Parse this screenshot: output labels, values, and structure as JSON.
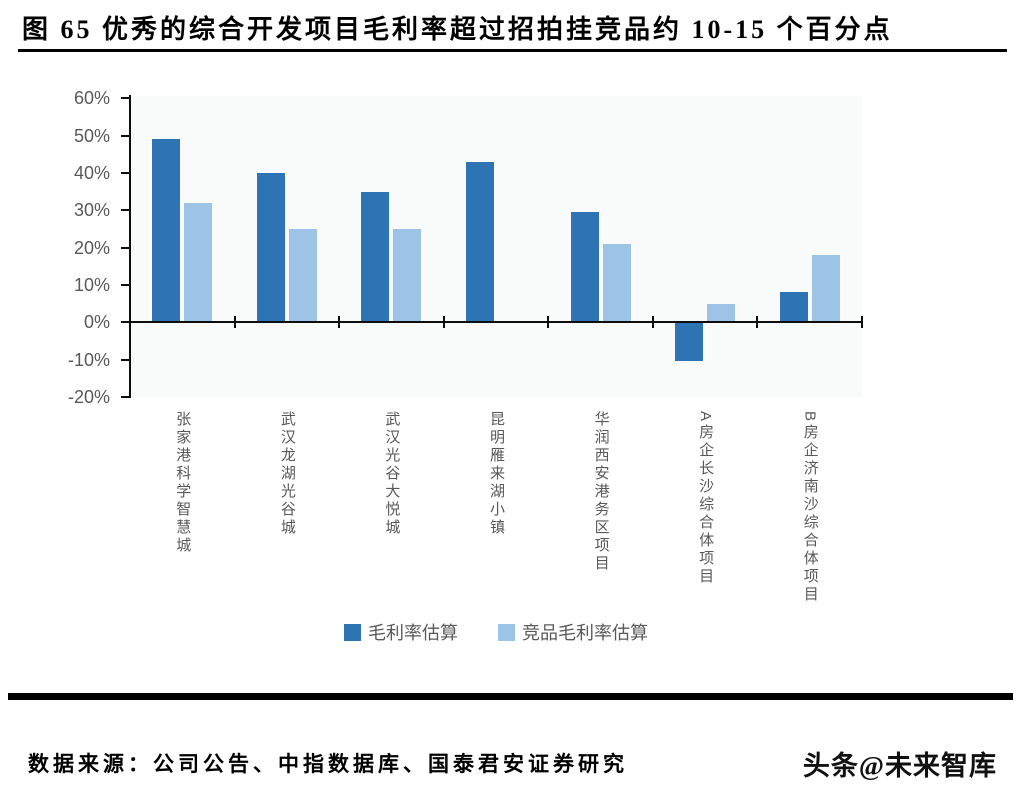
{
  "title": "图 65 优秀的综合开发项目毛利率超过招拍挂竞品约 10-15 个百分点",
  "footer": {
    "source": "数据来源：公司公告、中指数据库、国泰君安证券研究",
    "watermark": "头条@未来智库"
  },
  "colors": {
    "series_dark": "#2E74B5",
    "series_light": "#9DC3E6",
    "axis": "#0d0d0d",
    "label_gray": "#595959",
    "plot_background": "#f9fafa"
  },
  "chart_data": {
    "type": "bar",
    "title": "优秀的综合开发项目毛利率超过招拍挂竞品约10-15个百分点",
    "categories": [
      "张家港科学智慧城",
      "武汉龙湖光谷城",
      "武汉光谷大悦城",
      "昆明雁来湖小镇",
      "华润西安港务区项目",
      "A房企长沙综合体项目",
      "B房企济南沙综合体项目"
    ],
    "series": [
      {
        "name": "毛利率估算",
        "color": "#2E74B5",
        "values": [
          49,
          40,
          35,
          43,
          29.5,
          -10.5,
          8
        ]
      },
      {
        "name": "竞品毛利率估算",
        "color": "#9DC3E6",
        "values": [
          32,
          25,
          25,
          null,
          21,
          5,
          18
        ]
      }
    ],
    "xlabel": "",
    "ylabel": "",
    "ylim": [
      -20,
      60
    ],
    "ytick_step": 10,
    "ytick_labels": [
      "60%",
      "50%",
      "40%",
      "30%",
      "20%",
      "10%",
      "0%",
      "-10%",
      "-20%"
    ],
    "grid": false,
    "legend_position": "bottom"
  }
}
